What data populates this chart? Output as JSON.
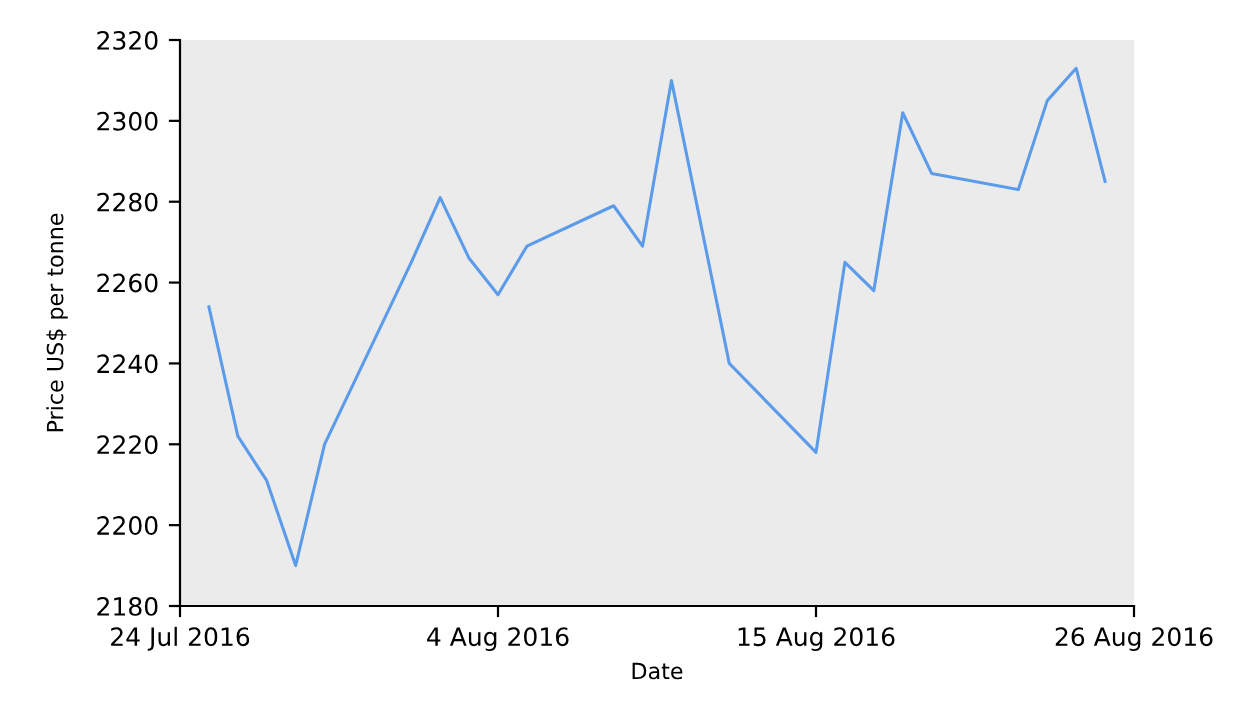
{
  "chart_data": {
    "type": "line",
    "xlabel": "Date",
    "ylabel": "Price US$ per tonne",
    "x": [
      "2016-07-25",
      "2016-07-26",
      "2016-07-27",
      "2016-07-28",
      "2016-07-29",
      "2016-08-01",
      "2016-08-02",
      "2016-08-03",
      "2016-08-04",
      "2016-08-05",
      "2016-08-08",
      "2016-08-09",
      "2016-08-10",
      "2016-08-11",
      "2016-08-12",
      "2016-08-15",
      "2016-08-16",
      "2016-08-17",
      "2016-08-18",
      "2016-08-19",
      "2016-08-22",
      "2016-08-23",
      "2016-08-24",
      "2016-08-25"
    ],
    "series": [
      {
        "color": "#5b9bea",
        "values": [
          2254,
          2222,
          2211,
          2190,
          2220,
          2265,
          2281,
          2266,
          2257,
          2269,
          2279,
          2269,
          2310,
          2275,
          2240,
          2218,
          2265,
          2258,
          2302,
          2287,
          2283,
          2305,
          2313,
          2285
        ]
      }
    ],
    "xlim": [
      "2016-07-24",
      "2016-08-26"
    ],
    "xticks": [
      {
        "value": "2016-07-24",
        "label": "24 Jul 2016"
      },
      {
        "value": "2016-08-04",
        "label": "4 Aug 2016"
      },
      {
        "value": "2016-08-15",
        "label": "15 Aug 2016"
      },
      {
        "value": "2016-08-26",
        "label": "26 Aug 2016"
      }
    ],
    "ylim": [
      2180,
      2320
    ],
    "yticks": [
      2180,
      2200,
      2220,
      2240,
      2260,
      2280,
      2300,
      2320
    ],
    "grid": false,
    "legend": false,
    "marker": "none",
    "line_style": "solid"
  }
}
